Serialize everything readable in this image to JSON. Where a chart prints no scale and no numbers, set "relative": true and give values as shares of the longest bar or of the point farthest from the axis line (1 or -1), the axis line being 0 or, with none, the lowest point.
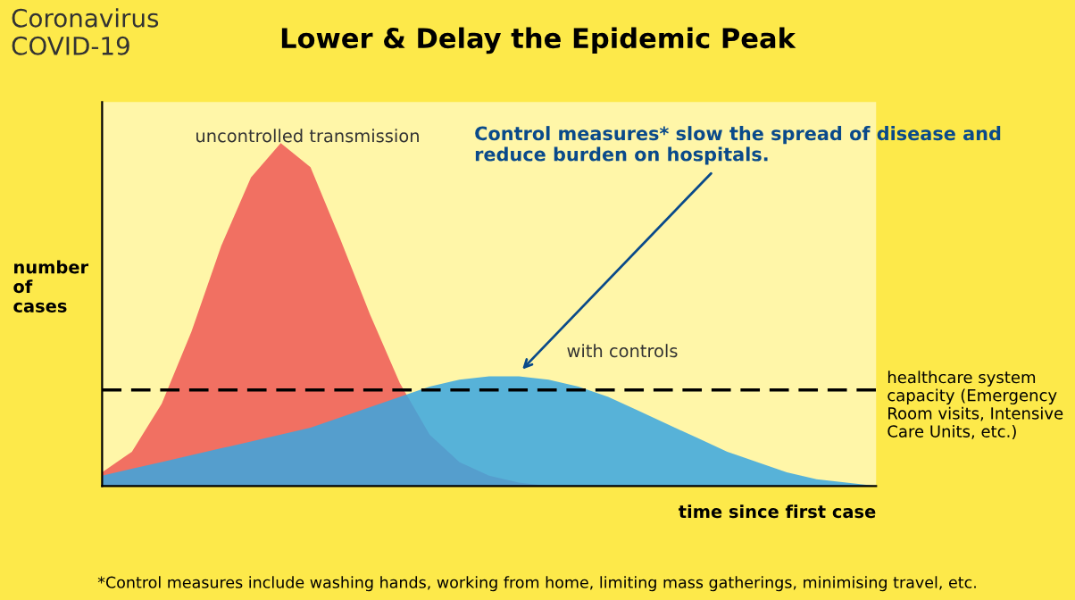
{
  "chart_data": {
    "type": "area",
    "title": "Lower & Delay the Epidemic Peak",
    "xlabel": "time since first case",
    "ylabel": "number of cases",
    "relative": true,
    "categories": [
      null,
      null,
      null,
      null,
      null,
      null,
      null,
      null,
      null,
      null,
      null,
      null,
      null,
      null,
      null,
      null,
      null,
      null,
      null,
      null,
      null,
      null,
      null,
      null,
      null,
      null,
      null
    ],
    "series": [
      {
        "name": "uncontrolled transmission",
        "color": "#f0625a",
        "values": [
          0.04,
          0.1,
          0.24,
          0.45,
          0.7,
          0.9,
          1.0,
          0.93,
          0.72,
          0.5,
          0.3,
          0.15,
          0.07,
          0.03,
          0.01,
          0,
          0,
          0,
          0,
          0,
          0,
          0,
          0,
          0,
          0,
          0,
          0
        ]
      },
      {
        "name": "with controls",
        "color": "#3aa6e0",
        "values": [
          0.03,
          0.05,
          0.07,
          0.09,
          0.11,
          0.13,
          0.15,
          0.17,
          0.2,
          0.23,
          0.26,
          0.29,
          0.31,
          0.32,
          0.32,
          0.31,
          0.29,
          0.26,
          0.22,
          0.18,
          0.14,
          0.1,
          0.07,
          0.04,
          0.02,
          0.01,
          0
        ]
      }
    ],
    "ref_lines": [
      {
        "axis": "y",
        "value": 0.28,
        "label": "healthcare system capacity (Emergency Room visits, Intensive Care Units, etc.)",
        "color": "#000000",
        "line_style": "dashed"
      }
    ],
    "annotations": [
      "Coronavirus COVID-19",
      "Control measures* slow the spread of disease and reduce burden on hospitals.",
      "*Control measures include washing hands, working from home, limiting mass gatherings, minimising travel, etc."
    ],
    "grid": false,
    "legend": false
  }
}
